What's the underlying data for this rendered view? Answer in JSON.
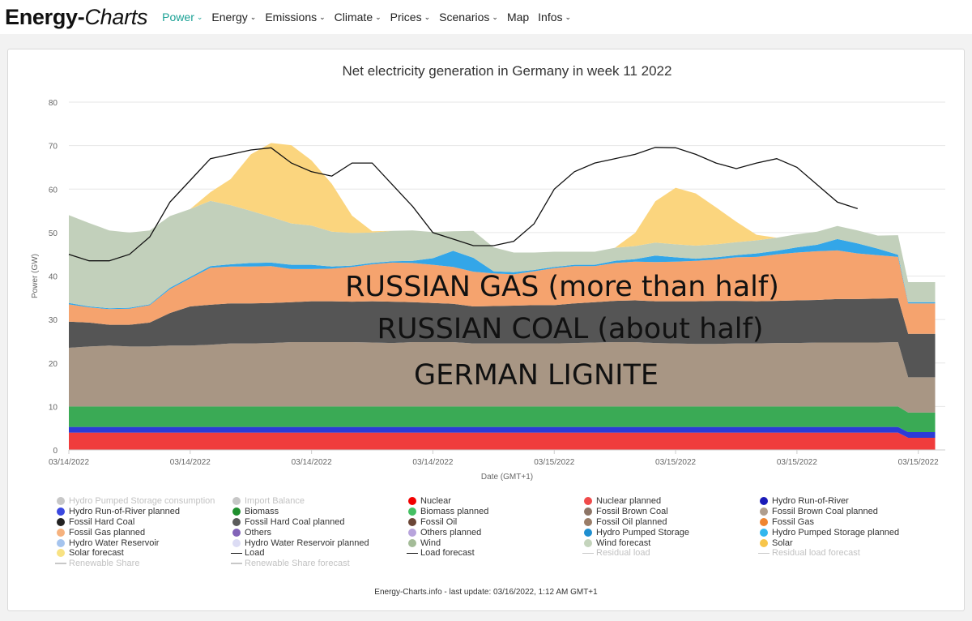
{
  "nav": {
    "brand_part1": "Energy-",
    "brand_part2": "Charts",
    "items": [
      {
        "label": "Power",
        "chevron": "⌄",
        "active": true
      },
      {
        "label": "Energy",
        "chevron": "⌄"
      },
      {
        "label": "Emissions",
        "chevron": "⌄"
      },
      {
        "label": "Climate",
        "chevron": "⌄"
      },
      {
        "label": "Prices",
        "chevron": "⌄"
      },
      {
        "label": "Scenarios",
        "chevron": "⌄"
      },
      {
        "label": "Map",
        "chevron": ""
      },
      {
        "label": "Infos",
        "chevron": "⌄"
      }
    ]
  },
  "chart_data": {
    "type": "area",
    "stacked": true,
    "title": "Net electricity generation in Germany in week 11 2022",
    "xlabel": "Date (GMT+1)",
    "ylabel": "Power (GW)",
    "ylim": [
      0,
      80
    ],
    "yticks": [
      "0",
      "10",
      "20",
      "30",
      "40",
      "50",
      "60",
      "70",
      "80"
    ],
    "xticks": [
      "03/14/2022",
      "03/14/2022",
      "03/14/2022",
      "03/14/2022",
      "03/15/2022",
      "03/15/2022",
      "03/15/2022",
      "03/15/2022"
    ],
    "x_hours": [
      0,
      3,
      6,
      9,
      12,
      15,
      18,
      21,
      24,
      27,
      30,
      33,
      36,
      39,
      42,
      45,
      48,
      51,
      54,
      57,
      60,
      63,
      66,
      69,
      72,
      75,
      78,
      81,
      84,
      87,
      90,
      93,
      96,
      99,
      102,
      105,
      108,
      111,
      114,
      117,
      120,
      123,
      124.5,
      127,
      128.5
    ],
    "series": [
      {
        "name": "Nuclear",
        "color": "#f03c3c",
        "values": [
          4,
          4,
          4,
          4,
          4,
          4,
          4,
          4,
          4,
          4,
          4,
          4,
          4,
          4,
          4,
          4,
          4,
          4,
          4,
          4,
          4,
          4,
          4,
          4,
          4,
          4,
          4,
          4,
          4,
          4,
          4,
          4,
          4,
          4,
          4,
          4,
          4,
          4,
          4,
          4,
          4,
          4,
          2.8,
          2.8,
          2.8
        ]
      },
      {
        "name": "Hydro Run-of-River",
        "color": "#2c3bd6",
        "values": [
          1.3,
          1.3,
          1.3,
          1.3,
          1.3,
          1.3,
          1.3,
          1.3,
          1.3,
          1.3,
          1.3,
          1.3,
          1.3,
          1.3,
          1.3,
          1.3,
          1.3,
          1.3,
          1.3,
          1.3,
          1.3,
          1.3,
          1.3,
          1.3,
          1.3,
          1.3,
          1.3,
          1.3,
          1.3,
          1.3,
          1.3,
          1.3,
          1.3,
          1.3,
          1.3,
          1.3,
          1.3,
          1.3,
          1.3,
          1.3,
          1.3,
          1.3,
          1.3,
          1.3,
          1.3
        ]
      },
      {
        "name": "Biomass",
        "color": "#3aaa55",
        "values": [
          4.7,
          4.7,
          4.7,
          4.7,
          4.7,
          4.7,
          4.7,
          4.7,
          4.7,
          4.7,
          4.7,
          4.7,
          4.7,
          4.7,
          4.7,
          4.7,
          4.7,
          4.7,
          4.7,
          4.7,
          4.7,
          4.7,
          4.7,
          4.7,
          4.7,
          4.7,
          4.7,
          4.7,
          4.7,
          4.7,
          4.7,
          4.7,
          4.7,
          4.7,
          4.7,
          4.7,
          4.7,
          4.7,
          4.7,
          4.7,
          4.7,
          4.7,
          4.5,
          4.5,
          4.5
        ]
      },
      {
        "name": "Fossil Brown Coal",
        "color": "#a89684",
        "values": [
          13.5,
          13.8,
          14,
          13.8,
          13.8,
          14,
          14,
          14.2,
          14.5,
          14.5,
          14.6,
          14.8,
          14.8,
          14.8,
          14.8,
          14.7,
          14.6,
          14.8,
          14.8,
          14.8,
          14.5,
          14.5,
          14.5,
          14.5,
          14.5,
          14.6,
          14.7,
          14.8,
          14.8,
          14.6,
          14.5,
          14.4,
          14.4,
          14.5,
          14.5,
          14.6,
          14.6,
          14.7,
          14.7,
          14.7,
          14.7,
          14.8,
          8.1,
          8.1,
          8.1
        ]
      },
      {
        "name": "Fossil Hard Coal",
        "color": "#555555",
        "values": [
          6,
          5.5,
          4.8,
          5,
          5.5,
          7.5,
          9,
          9.2,
          9.2,
          9.2,
          9.2,
          9.2,
          9.4,
          9.4,
          9.3,
          9.5,
          9.5,
          9.2,
          9,
          8.8,
          8.5,
          8.6,
          8.7,
          8.8,
          8.8,
          9.1,
          9.3,
          9.5,
          9.6,
          9.6,
          9.7,
          9.8,
          9.9,
          9.8,
          9.7,
          9.7,
          9.8,
          9.8,
          10,
          10,
          10.1,
          10.1,
          10,
          10,
          10
        ]
      },
      {
        "name": "Fossil Gas",
        "color": "#f5a36e",
        "values": [
          4,
          3.5,
          3.6,
          3.7,
          4,
          5.5,
          6.5,
          8.5,
          8.5,
          8.5,
          8.5,
          7.6,
          7.4,
          7.5,
          8,
          8.5,
          9,
          9,
          8.8,
          8.5,
          8,
          7.5,
          7.2,
          7.8,
          8.5,
          8.6,
          8.3,
          8.7,
          8.9,
          9,
          9.1,
          9.3,
          9.5,
          10,
          10.2,
          10.7,
          11,
          11.2,
          11.2,
          10.5,
          10,
          9.5,
          7,
          7,
          7
        ]
      },
      {
        "name": "Hydro Pumped Storage",
        "color": "#33a6e8",
        "values": [
          0.3,
          0.2,
          0.2,
          0.2,
          0.2,
          0.3,
          0.3,
          0.4,
          0.5,
          0.8,
          0.8,
          1,
          1,
          0.5,
          0.3,
          0.3,
          0.3,
          0.5,
          1.5,
          3.7,
          3.2,
          0.5,
          0.5,
          0.3,
          0.3,
          0.3,
          0.3,
          0.5,
          0.6,
          1.5,
          1,
          0.5,
          0.5,
          0.5,
          0.8,
          0.8,
          1.2,
          1.5,
          2.6,
          2.3,
          1.5,
          0.5,
          0.3,
          0.3,
          0.3
        ]
      },
      {
        "name": "Wind",
        "color": "#c2d0bb",
        "values": [
          20.2,
          19.2,
          17.9,
          17.3,
          17,
          16.5,
          15.6,
          15,
          13.6,
          12,
          10.5,
          9.5,
          9,
          8,
          7.5,
          7,
          7,
          7,
          6,
          4.5,
          6.2,
          5.5,
          4.5,
          4,
          3.5,
          3,
          3,
          3,
          3,
          3,
          3,
          3,
          3,
          3,
          3,
          3,
          3,
          3,
          3,
          3,
          3,
          4.5,
          4.6,
          4.6,
          4.6
        ]
      },
      {
        "name": "Solar",
        "color": "#fbd57e",
        "values": [
          0,
          0,
          0,
          0,
          0,
          0,
          0,
          2,
          6,
          13,
          17,
          18,
          15,
          11,
          4,
          0.3,
          0,
          0,
          0,
          0,
          0,
          0,
          0,
          0,
          0,
          0,
          0,
          0,
          3,
          9.5,
          13,
          12,
          8.5,
          4.7,
          1.3,
          0,
          0,
          0,
          0,
          0,
          0,
          0,
          0,
          0,
          0
        ]
      },
      {
        "name": "Load",
        "color": "#111111",
        "type": "line",
        "values": [
          45,
          43.5,
          43.5,
          45,
          49,
          57,
          62,
          67,
          68,
          69,
          69.5,
          66,
          64,
          63,
          66,
          66,
          61,
          56,
          50,
          48.5,
          47,
          47,
          48,
          52,
          60,
          64,
          66,
          67,
          68,
          69.6,
          69.5,
          68,
          66,
          64.7,
          66,
          67,
          65,
          61,
          57,
          55.5,
          null,
          null,
          null,
          null,
          null
        ]
      }
    ],
    "annotations": [
      "RUSSIAN GAS (more than half)",
      "RUSSIAN COAL (about half)",
      "GERMAN LIGNITE"
    ],
    "legend_position": "bottom",
    "legend": [
      {
        "label": "Hydro Pumped Storage consumption",
        "color": "#c7c7c7",
        "kind": "dot",
        "dim": true
      },
      {
        "label": "Import Balance",
        "color": "#c7c7c7",
        "kind": "dot",
        "dim": true
      },
      {
        "label": "Nuclear",
        "color": "#f20000",
        "kind": "dot"
      },
      {
        "label": "Nuclear planned",
        "color": "#f04a4a",
        "kind": "dot"
      },
      {
        "label": "Hydro Run-of-River",
        "color": "#1b1bb8",
        "kind": "dot"
      },
      {
        "label": "Hydro Run-of-River planned",
        "color": "#3b48e0",
        "kind": "dot"
      },
      {
        "label": "Biomass",
        "color": "#1f8f2e",
        "kind": "dot"
      },
      {
        "label": "Biomass planned",
        "color": "#45c063",
        "kind": "dot"
      },
      {
        "label": "Fossil Brown Coal",
        "color": "#8d7566",
        "kind": "dot"
      },
      {
        "label": "Fossil Brown Coal planned",
        "color": "#b09e8e",
        "kind": "dot"
      },
      {
        "label": "Fossil Hard Coal",
        "color": "#222222",
        "kind": "dot"
      },
      {
        "label": "Fossil Hard Coal planned",
        "color": "#5b5b5b",
        "kind": "dot"
      },
      {
        "label": "Fossil Oil",
        "color": "#6b4636",
        "kind": "dot"
      },
      {
        "label": "Fossil Oil planned",
        "color": "#9a7d68",
        "kind": "dot"
      },
      {
        "label": "Fossil Gas",
        "color": "#f08530",
        "kind": "dot"
      },
      {
        "label": "Fossil Gas planned",
        "color": "#f6b27e",
        "kind": "dot"
      },
      {
        "label": "Others",
        "color": "#8263b8",
        "kind": "dot"
      },
      {
        "label": "Others planned",
        "color": "#b8a4dc",
        "kind": "dot"
      },
      {
        "label": "Hydro Pumped Storage",
        "color": "#1f8fd0",
        "kind": "dot"
      },
      {
        "label": "Hydro Pumped Storage planned",
        "color": "#33b7ee",
        "kind": "dot"
      },
      {
        "label": "Hydro Water Reservoir",
        "color": "#a5c4ee",
        "kind": "dot"
      },
      {
        "label": "Hydro Water Reservoir planned",
        "color": "#dcdcf4",
        "kind": "dot"
      },
      {
        "label": "Wind",
        "color": "#a4bc98",
        "kind": "dot"
      },
      {
        "label": "Wind forecast",
        "color": "#c4d4bc",
        "kind": "dot"
      },
      {
        "label": "Solar",
        "color": "#f7c54a",
        "kind": "dot"
      },
      {
        "label": "Solar forecast",
        "color": "#f8e283",
        "kind": "dot"
      },
      {
        "label": "Load",
        "color": "#111111",
        "kind": "line"
      },
      {
        "label": "Load forecast",
        "color": "#111111",
        "kind": "line"
      },
      {
        "label": "Residual load",
        "color": "#c8c8c8",
        "kind": "line",
        "dim": true
      },
      {
        "label": "Residual load forecast",
        "color": "#c8c8c8",
        "kind": "line",
        "dim": true
      },
      {
        "label": "Renewable Share",
        "color": "#c8c8c8",
        "kind": "line",
        "dim": true
      },
      {
        "label": "Renewable Share forecast",
        "color": "#c8c8c8",
        "kind": "line",
        "dim": true
      }
    ]
  },
  "footer": "Energy-Charts.info - last update: 03/16/2022, 1:12 AM GMT+1"
}
